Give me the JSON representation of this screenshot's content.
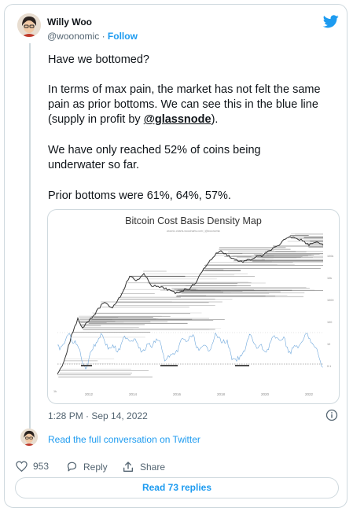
{
  "author": {
    "name": "Willy Woo",
    "handle": "@woonomic",
    "separator": "·",
    "follow_label": "Follow"
  },
  "tweet": {
    "p1": "Have we bottomed?",
    "p2_pre": "In terms of max pain, the market has not felt the same pain as prior bottoms. We can see this in the blue line (supply in profit by ",
    "mention": "@glassnode",
    "p2_post": ").",
    "p3": "We have only reached 52% of coins being underwater so far.",
    "p4": "Prior bottoms were 61%, 64%, 57%.",
    "timestamp": "1:28 PM · Sep 14, 2022"
  },
  "media": {
    "chart_data": {
      "type": "line",
      "title": "Bitcoin Cost Basis Density Map",
      "subtitle": "woonic.charts.woocharts.com | @woonomic",
      "x_ticks": [
        "2012",
        "2014",
        "2016",
        "2018",
        "2020",
        "2022"
      ],
      "left_axis_label": "1k",
      "right_axis_ticks": [
        "100k",
        "10k",
        "1000",
        "100",
        "10",
        "0.1"
      ],
      "price_color": "#333333",
      "supply_in_profit_color": "#6fa8dc",
      "prior_bottom_marker_color": "#333333"
    }
  },
  "footer": {
    "read_conversation": "Read the full conversation on Twitter",
    "likes": "953",
    "reply_label": "Reply",
    "share_label": "Share",
    "read_replies": "Read 73 replies"
  },
  "colors": {
    "accent": "#1d9bf0",
    "border": "#cfd9de",
    "muted": "#536471"
  }
}
